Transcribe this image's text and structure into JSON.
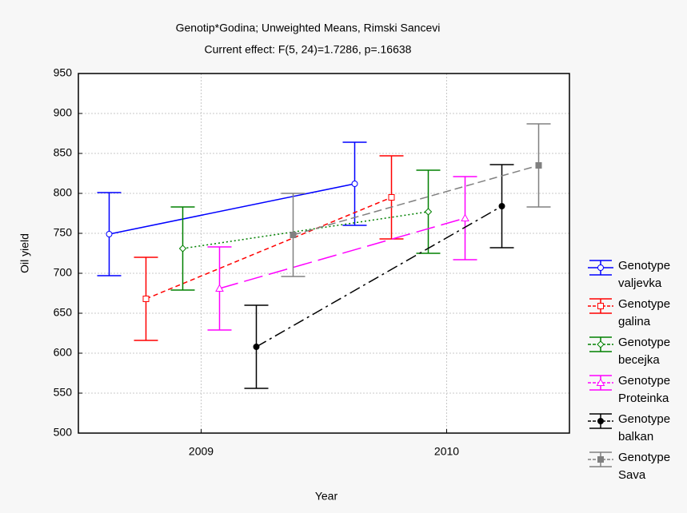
{
  "chart_data": {
    "type": "line",
    "title": "Genotip*Godina; Unweighted Means, Rimski Sancevi",
    "subtitle": "Current effect: F(5, 24)=1.7286, p=.16638",
    "x_label": "Year",
    "y_label": "Oil yield",
    "categories": [
      "2009",
      "2010"
    ],
    "ylim": [
      500,
      950
    ],
    "yticks": [
      500,
      550,
      600,
      650,
      700,
      750,
      800,
      850,
      900,
      950
    ],
    "grid": true,
    "legend": "right",
    "series": [
      {
        "name": "Genotype valjevka",
        "color": "#0000ff",
        "dash": "none",
        "marker": "circle-open",
        "values": [
          749,
          812
        ],
        "errors": [
          52,
          52
        ]
      },
      {
        "name": "Genotype galina",
        "color": "#ff0000",
        "dash": "6 4",
        "marker": "square-open",
        "values": [
          668,
          795
        ],
        "errors": [
          52,
          52
        ]
      },
      {
        "name": "Genotype becejka",
        "color": "#008000",
        "dash": "2 3",
        "marker": "diamond-open",
        "values": [
          731,
          777
        ],
        "errors": [
          52,
          52
        ]
      },
      {
        "name": "Genotype Proteinka",
        "color": "#ff00ff",
        "dash": "24 8",
        "marker": "triangle-open",
        "values": [
          681,
          769
        ],
        "errors": [
          52,
          52
        ]
      },
      {
        "name": "Genotype balkan",
        "color": "#000000",
        "dash": "14 5 3 5",
        "marker": "circle-filled",
        "values": [
          608,
          784
        ],
        "errors": [
          52,
          52
        ]
      },
      {
        "name": "Genotype Sava",
        "color": "#808080",
        "dash": "10 5",
        "marker": "square-filled",
        "values": [
          748,
          835
        ],
        "errors": [
          52,
          52
        ]
      }
    ]
  }
}
